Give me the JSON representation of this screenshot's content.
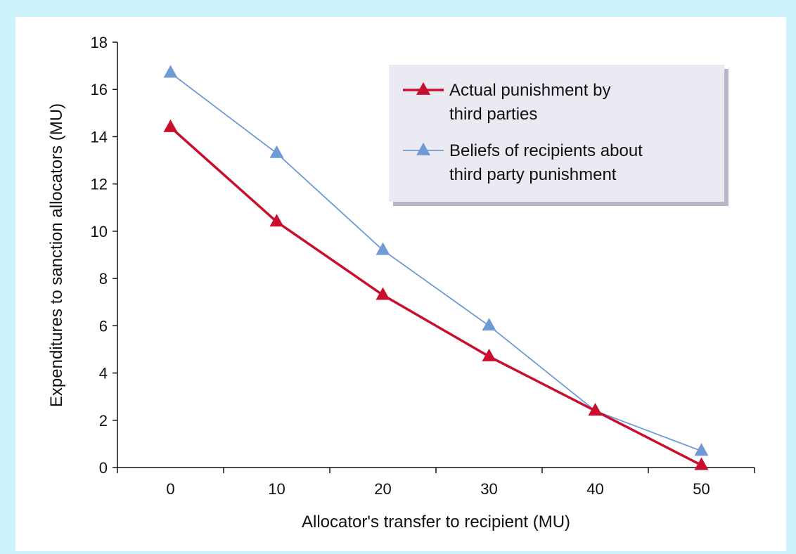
{
  "colors": {
    "background": "#ccf3fb",
    "legend_fill": "#ebeaf2",
    "legend_shadow": "#b9b7c7"
  },
  "chart_data": {
    "type": "line",
    "xlabel": "Allocator's transfer to recipient (MU)",
    "ylabel": "Expenditures to sanction allocators (MU)",
    "x": [
      0,
      10,
      20,
      30,
      40,
      50
    ],
    "xticks": [
      0,
      10,
      20,
      30,
      40,
      50
    ],
    "yticks": [
      0,
      2,
      4,
      6,
      8,
      10,
      12,
      14,
      16,
      18
    ],
    "xlim": [
      -5,
      55
    ],
    "ylim": [
      0,
      18
    ],
    "grid": false,
    "legend_position": "top-right",
    "series": [
      {
        "name": "Actual punishment by third parties",
        "legend_lines": [
          "Actual punishment by",
          "third parties"
        ],
        "values": [
          14.4,
          10.4,
          7.3,
          4.7,
          2.4,
          0.1
        ],
        "color": "#c8102e",
        "marker": "triangle"
      },
      {
        "name": "Beliefs of recipients about third party punishment",
        "legend_lines": [
          "Beliefs of recipients about",
          "third party punishment"
        ],
        "values": [
          16.7,
          13.3,
          9.2,
          6.0,
          2.4,
          0.7
        ],
        "color": "#6e9ad6",
        "marker": "triangle"
      }
    ]
  }
}
